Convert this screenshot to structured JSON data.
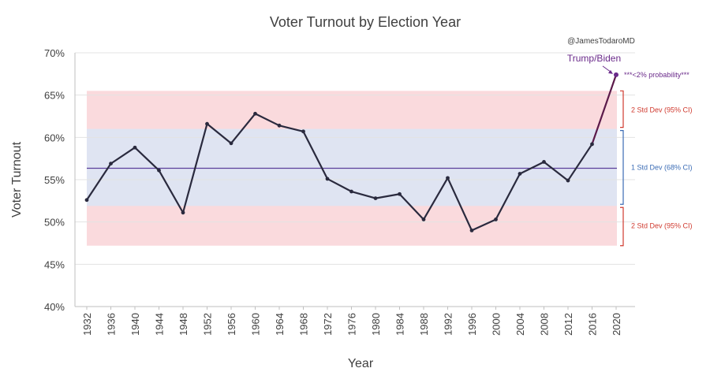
{
  "chart_data": {
    "type": "line",
    "title": "Voter Turnout by Election Year",
    "credit": "@JamesTodaroMD",
    "xlabel": "Year",
    "ylabel": "Voter Turnout",
    "ylim": [
      40,
      70
    ],
    "ytick_values": [
      40,
      45,
      50,
      55,
      60,
      65,
      70
    ],
    "ytick_labels": [
      "40%",
      "45%",
      "50%",
      "55%",
      "60%",
      "65%",
      "70%"
    ],
    "grid": true,
    "series": [
      {
        "values": [
          52.6,
          56.9,
          58.8,
          56.1,
          51.1,
          61.6,
          59.3,
          62.8,
          61.4,
          60.7,
          55.1,
          53.6,
          52.8,
          53.3,
          50.3,
          55.2,
          49.0,
          50.3,
          55.7,
          57.1,
          54.9,
          59.2,
          67.4
        ]
      }
    ],
    "x": [
      "1932",
      "1936",
      "1940",
      "1944",
      "1948",
      "1952",
      "1956",
      "1960",
      "1964",
      "1968",
      "1972",
      "1976",
      "1980",
      "1984",
      "1988",
      "1992",
      "1996",
      "2000",
      "2004",
      "2008",
      "2012",
      "2016",
      "2020"
    ],
    "mean": 56.35,
    "bands": {
      "outer": {
        "low": 47.2,
        "high": 65.5,
        "color": "#fadadd"
      },
      "inner": {
        "low": 51.9,
        "high": 61.0,
        "color": "#dfe4f2"
      }
    },
    "band_labels": {
      "upper": "2 Std Dev (95% CI)",
      "middle": "1 Std Dev (68% CI)",
      "lower": "2 Std Dev (95% CI)"
    },
    "annotation": {
      "label": "Trump/Biden",
      "note": "***<2% probability***"
    },
    "colors": {
      "line": "#2a2a3e",
      "last_segment": "#5b1a4a",
      "mean_line": "#5a3f9a",
      "red_label": "#d03a2f",
      "blue_label": "#3b6cb5",
      "annotation": "#6a2a8a"
    }
  }
}
